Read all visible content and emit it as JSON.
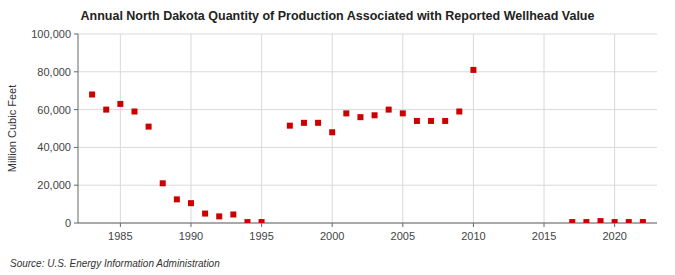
{
  "chart_data": {
    "type": "scatter",
    "title": "Annual North Dakota Quantity of Production Associated with Reported Wellhead Value",
    "ylabel": "Million Cubic Feet",
    "source": "Source: U.S. Energy Information Administration",
    "x": [
      1983,
      1984,
      1985,
      1986,
      1987,
      1988,
      1989,
      1990,
      1991,
      1992,
      1993,
      1994,
      1995,
      1997,
      1998,
      1999,
      2000,
      2001,
      2002,
      2003,
      2004,
      2005,
      2006,
      2007,
      2008,
      2009,
      2010,
      2017,
      2018,
      2019,
      2020,
      2021,
      2022
    ],
    "values": [
      68000,
      60000,
      63000,
      59000,
      51000,
      21000,
      12500,
      10500,
      5000,
      3500,
      4500,
      500,
      500,
      51500,
      53000,
      53000,
      48000,
      58000,
      56000,
      57000,
      60000,
      58000,
      54000,
      54000,
      54000,
      59000,
      81000,
      500,
      500,
      1000,
      500,
      500,
      500
    ],
    "color": "#cc0000",
    "marker": "square",
    "xlim": [
      1982,
      2023
    ],
    "xticks": [
      1985,
      1990,
      1995,
      2000,
      2005,
      2010,
      2015,
      2020
    ],
    "ylim": [
      0,
      100000
    ],
    "yticks": [
      0,
      {
        "value": 20000,
        "label": "20,000"
      },
      {
        "value": 40000,
        "label": "40,000"
      },
      {
        "value": 60000,
        "label": "60,000"
      },
      {
        "value": 80000,
        "label": "80,000"
      },
      {
        "value": 100000,
        "label": "100,000"
      }
    ],
    "grid": true
  }
}
